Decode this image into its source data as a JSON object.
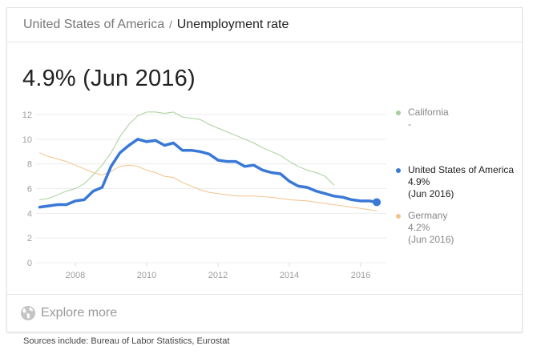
{
  "header": {
    "breadcrumb_parent": "United States of America",
    "breadcrumb_separator": "/",
    "breadcrumb_current": "Unemployment rate"
  },
  "headline": {
    "value": "4.9% (Jun 2016)"
  },
  "legend": {
    "items": [
      {
        "name": "California",
        "value": "-",
        "date": "",
        "color": "#a8cf9a",
        "active": false
      },
      {
        "name": "United States of America",
        "value": "4.9%",
        "date": "(Jun 2016)",
        "color": "#3a78d6",
        "active": true
      },
      {
        "name": "Germany",
        "value": "4.2%",
        "date": "(Jun 2016)",
        "color": "#f2c48c",
        "active": false
      }
    ]
  },
  "footer": {
    "explore_label": "Explore more",
    "globe_icon": "globe-icon"
  },
  "sources": "Sources include: Bureau of Labor Statistics, Eurostat",
  "colors": {
    "usa": "#3a78d6",
    "california": "#a8cf9a",
    "germany": "#f2c48c",
    "grid": "#ececec",
    "axis_text": "#9e9e9e"
  },
  "chart_data": {
    "type": "line",
    "title": "Unemployment rate",
    "xlabel": "",
    "ylabel": "",
    "ylim": [
      0,
      12
    ],
    "xlim": [
      2006.9,
      2016.75
    ],
    "y_ticks": [
      0,
      2,
      4,
      6,
      8,
      10,
      12
    ],
    "x_ticks": [
      2008,
      2010,
      2012,
      2014,
      2016
    ],
    "grid": true,
    "legend_position": "right",
    "series": [
      {
        "name": "California",
        "x": [
          2007.0,
          2007.25,
          2007.5,
          2007.75,
          2008.0,
          2008.25,
          2008.5,
          2008.75,
          2009.0,
          2009.25,
          2009.5,
          2009.75,
          2010.0,
          2010.25,
          2010.5,
          2010.75,
          2011.0,
          2011.25,
          2011.5,
          2011.75,
          2012.0,
          2012.25,
          2012.5,
          2012.75,
          2013.0,
          2013.25,
          2013.5,
          2013.75,
          2014.0,
          2014.25,
          2014.5,
          2014.75,
          2015.0,
          2015.25
        ],
        "values": [
          5.1,
          5.2,
          5.5,
          5.8,
          6.0,
          6.4,
          7.1,
          7.9,
          8.9,
          10.2,
          11.2,
          11.9,
          12.2,
          12.2,
          12.1,
          12.2,
          11.8,
          11.7,
          11.6,
          11.2,
          10.9,
          10.6,
          10.3,
          10.0,
          9.7,
          9.3,
          9.0,
          8.7,
          8.2,
          7.8,
          7.5,
          7.3,
          7.0,
          6.3
        ]
      },
      {
        "name": "United States of America",
        "x": [
          2007.0,
          2007.25,
          2007.5,
          2007.75,
          2008.0,
          2008.25,
          2008.5,
          2008.75,
          2009.0,
          2009.25,
          2009.5,
          2009.75,
          2010.0,
          2010.25,
          2010.5,
          2010.75,
          2011.0,
          2011.25,
          2011.5,
          2011.75,
          2012.0,
          2012.25,
          2012.5,
          2012.75,
          2013.0,
          2013.25,
          2013.5,
          2013.75,
          2014.0,
          2014.25,
          2014.5,
          2014.75,
          2015.0,
          2015.25,
          2015.5,
          2015.75,
          2016.0,
          2016.25,
          2016.45
        ],
        "values": [
          4.5,
          4.6,
          4.7,
          4.7,
          5.0,
          5.1,
          5.8,
          6.1,
          7.8,
          8.9,
          9.5,
          10.0,
          9.8,
          9.9,
          9.5,
          9.7,
          9.1,
          9.1,
          9.0,
          8.8,
          8.3,
          8.2,
          8.2,
          7.8,
          7.9,
          7.5,
          7.3,
          7.2,
          6.6,
          6.2,
          6.1,
          5.8,
          5.6,
          5.4,
          5.3,
          5.1,
          5.0,
          5.0,
          4.9
        ]
      },
      {
        "name": "Germany",
        "x": [
          2007.0,
          2007.25,
          2007.5,
          2007.75,
          2008.0,
          2008.25,
          2008.5,
          2008.75,
          2009.0,
          2009.25,
          2009.5,
          2009.75,
          2010.0,
          2010.25,
          2010.5,
          2010.75,
          2011.0,
          2011.25,
          2011.5,
          2011.75,
          2012.0,
          2012.5,
          2013.0,
          2013.5,
          2014.0,
          2014.5,
          2015.0,
          2015.5,
          2016.0,
          2016.45
        ],
        "values": [
          8.9,
          8.6,
          8.4,
          8.2,
          7.9,
          7.6,
          7.3,
          7.1,
          7.4,
          7.8,
          7.9,
          7.8,
          7.5,
          7.3,
          7.0,
          6.9,
          6.5,
          6.2,
          5.9,
          5.7,
          5.6,
          5.4,
          5.4,
          5.3,
          5.1,
          5.0,
          4.8,
          4.6,
          4.4,
          4.2
        ]
      }
    ]
  }
}
